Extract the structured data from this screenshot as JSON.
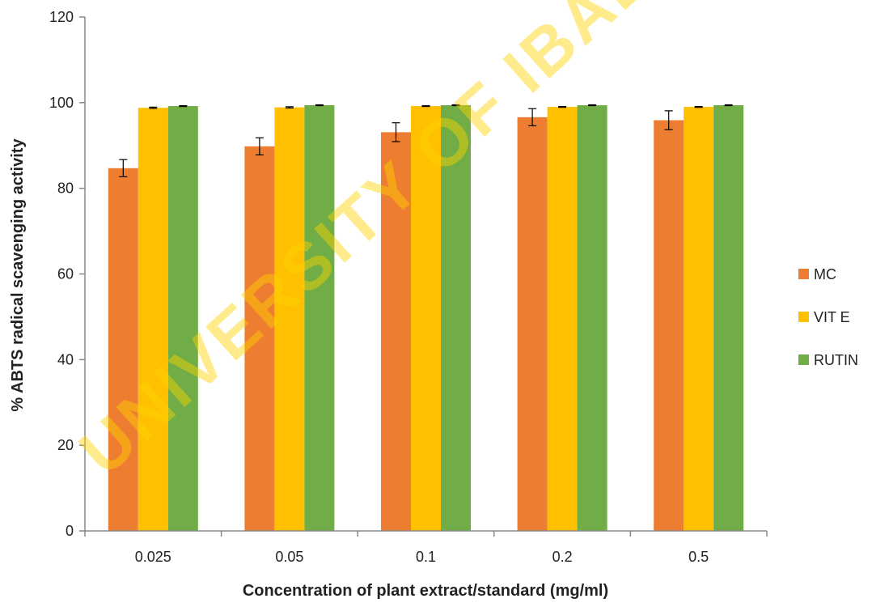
{
  "watermark": "UNIVERSITY OF IBADAN",
  "chart_data": {
    "type": "bar",
    "title": "",
    "xlabel": "Concentration of plant extract/standard (mg/ml)",
    "ylabel": "% ABTS radical scavenging activity",
    "categories": [
      "0.025",
      "0.05",
      "0.1",
      "0.2",
      "0.5"
    ],
    "ylim": [
      0,
      120
    ],
    "yticks": [
      0,
      20,
      40,
      60,
      80,
      100,
      120
    ],
    "grid": false,
    "legend_position": "right",
    "series": [
      {
        "name": "MC",
        "color": "#ed7d31",
        "values": [
          84.7,
          89.8,
          93.1,
          96.6,
          95.9
        ],
        "errors": [
          2.0,
          2.0,
          2.2,
          2.0,
          2.2
        ]
      },
      {
        "name": "VIT E",
        "color": "#ffc000",
        "values": [
          98.8,
          98.9,
          99.2,
          99.0,
          99.0
        ],
        "errors": [
          0.15,
          0.15,
          0.1,
          0.1,
          0.1
        ]
      },
      {
        "name": "RUTIN",
        "color": "#70ad47",
        "values": [
          99.2,
          99.4,
          99.4,
          99.4,
          99.4
        ],
        "errors": [
          0.1,
          0.1,
          0.1,
          0.1,
          0.1
        ]
      }
    ]
  }
}
